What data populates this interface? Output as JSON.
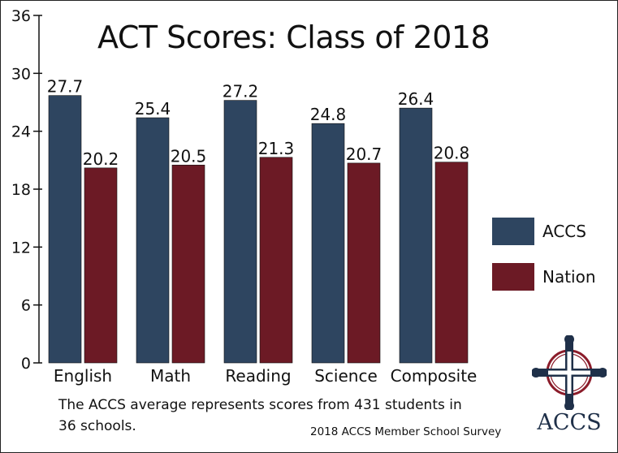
{
  "colors": {
    "acc": "#2e4560",
    "nation": "#6c1a25",
    "axis": "#111111",
    "grid": "#000000"
  },
  "chart_data": {
    "type": "bar",
    "title": "ACT Scores: Class of 2018",
    "categories": [
      "English",
      "Math",
      "Reading",
      "Science",
      "Composite"
    ],
    "series": [
      {
        "name": "ACCS",
        "values": [
          27.7,
          25.4,
          27.2,
          24.8,
          26.4
        ]
      },
      {
        "name": "Nation",
        "values": [
          20.2,
          20.5,
          21.3,
          20.7,
          20.8
        ]
      }
    ],
    "value_labels": {
      "ACCS": [
        "27.7",
        "25.4",
        "27.2",
        "24.8",
        "26.4"
      ],
      "Nation": [
        "20.2",
        "20.5",
        "21.3",
        "20.7",
        "20.8"
      ]
    },
    "yticks": [
      0,
      6,
      12,
      18,
      24,
      30,
      36
    ],
    "ylim": [
      0,
      36
    ],
    "xlabel": "",
    "ylabel": "",
    "legend_position": "right",
    "grid": false
  },
  "footer": {
    "note": "The ACCS average represents scores from 431 students in 36 schools.",
    "source": "2018 ACCS Member School Survey"
  },
  "logo": {
    "text": "ACCS"
  }
}
